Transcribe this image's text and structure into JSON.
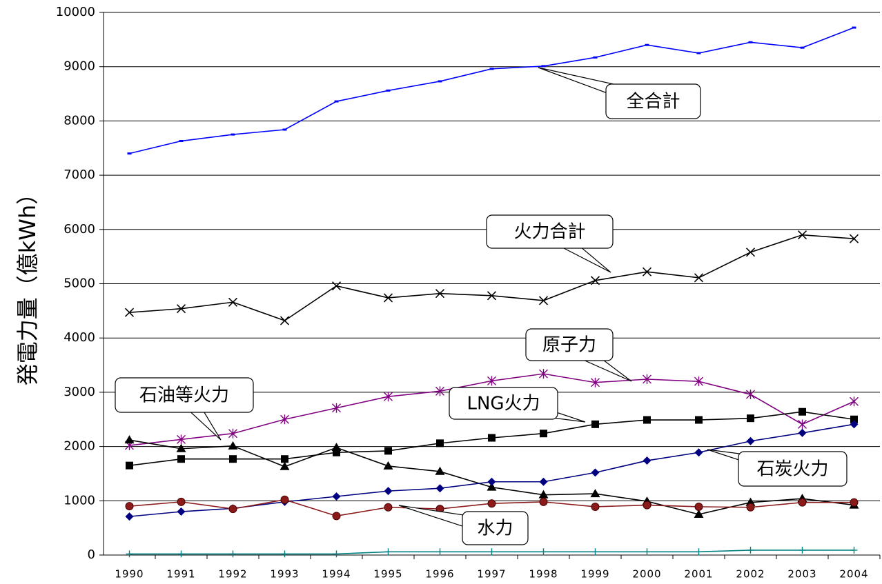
{
  "chart_data": {
    "type": "line",
    "y_label": "発電力量（億kWh）",
    "categories": [
      "1990",
      "1991",
      "1992",
      "1993",
      "1994",
      "1995",
      "1996",
      "1997",
      "1998",
      "1999",
      "2000",
      "2001",
      "2002",
      "2003",
      "2004"
    ],
    "ylim": [
      0,
      10000
    ],
    "yticks": [
      0,
      1000,
      2000,
      3000,
      4000,
      5000,
      6000,
      7000,
      8000,
      9000,
      10000
    ],
    "grid": true,
    "series": [
      {
        "name": "全合計",
        "color": "#0000ff",
        "marker": "dash",
        "values": [
          7400,
          7630,
          7750,
          7840,
          8360,
          8560,
          8730,
          8960,
          9010,
          9170,
          9400,
          9250,
          9450,
          9350,
          9720
        ]
      },
      {
        "name": "火力合計",
        "color": "#000000",
        "marker": "x",
        "values": [
          4470,
          4540,
          4660,
          4320,
          4960,
          4740,
          4820,
          4780,
          4690,
          5060,
          5220,
          5110,
          5580,
          5900,
          5830
        ]
      },
      {
        "name": "原子力",
        "color": "#800080",
        "marker": "asterisk",
        "values": [
          2020,
          2130,
          2240,
          2500,
          2710,
          2920,
          3020,
          3210,
          3340,
          3180,
          3240,
          3200,
          2960,
          2410,
          2830
        ]
      },
      {
        "name": "LNG火力",
        "color": "#000000",
        "marker": "square",
        "values": [
          1650,
          1770,
          1770,
          1770,
          1890,
          1920,
          2060,
          2160,
          2240,
          2410,
          2490,
          2490,
          2520,
          2640,
          2500
        ]
      },
      {
        "name": "石油等火力",
        "color": "#000000",
        "marker": "triangle",
        "values": [
          2120,
          1960,
          2010,
          1630,
          1980,
          1640,
          1540,
          1250,
          1110,
          1130,
          990,
          750,
          970,
          1040,
          920
        ]
      },
      {
        "name": "石炭火力",
        "color": "#000080",
        "marker": "diamond",
        "values": [
          710,
          800,
          860,
          980,
          1080,
          1180,
          1230,
          1350,
          1350,
          1520,
          1740,
          1890,
          2100,
          2250,
          2410
        ]
      },
      {
        "name": "水力",
        "color": "#8b1a1a",
        "marker": "circle",
        "values": [
          900,
          980,
          850,
          1020,
          720,
          880,
          850,
          950,
          980,
          890,
          920,
          890,
          880,
          970,
          970
        ]
      },
      {
        "color": "#008080",
        "marker": "plus",
        "values": [
          20,
          20,
          20,
          20,
          20,
          60,
          60,
          60,
          60,
          60,
          60,
          60,
          90,
          90,
          90
        ]
      }
    ]
  }
}
